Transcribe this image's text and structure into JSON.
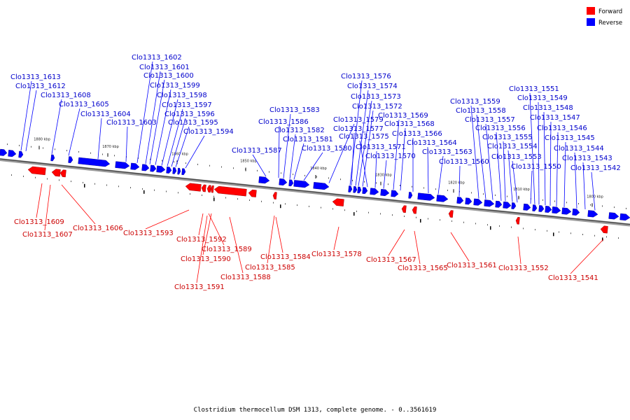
{
  "colors": {
    "forward": "#ff0000",
    "reverse": "#0000ff",
    "forward_label": "#cc0000",
    "reverse_label": "#0000cc"
  },
  "legend": {
    "forward": "Forward",
    "reverse": "Reverse"
  },
  "caption": "Clostridium thermocellum DSM 1313, complete genome. - 0..3561619",
  "ticks": [
    "1880 kbp",
    "1870 kbp",
    "1860 kbp",
    "1850 kbp",
    "1840 kbp",
    "1830 kbp",
    "1820 kbp",
    "1810 kbp",
    "1800 kbp"
  ],
  "reverse_labels": [
    "Clo1313_1613",
    "Clo1313_1612",
    "Clo1313_1608",
    "Clo1313_1605",
    "Clo1313_1604",
    "Clo1313_1603",
    "Clo1313_1602",
    "Clo1313_1601",
    "Clo1313_1600",
    "Clo1313_1599",
    "Clo1313_1598",
    "Clo1313_1597",
    "Clo1313_1596",
    "Clo1313_1595",
    "Clo1313_1594",
    "Clo1313_1587",
    "Clo1313_1586",
    "Clo1313_1583",
    "Clo1313_1582",
    "Clo1313_1581",
    "Clo1313_1580",
    "Clo1313_1579",
    "Clo1313_1576",
    "Clo1313_1574",
    "Clo1313_1573",
    "Clo1313_1572",
    "Clo1313_1577",
    "Clo1313_1575",
    "Clo1313_1571",
    "Clo1313_1570",
    "Clo1313_1569",
    "Clo1313_1568",
    "Clo1313_1566",
    "Clo1313_1564",
    "Clo1313_1563",
    "Clo1313_1560",
    "Clo1313_1559",
    "Clo1313_1558",
    "Clo1313_1557",
    "Clo1313_1556",
    "Clo1313_1555",
    "Clo1313_1554",
    "Clo1313_1553",
    "Clo1313_1550",
    "Clo1313_1551",
    "Clo1313_1549",
    "Clo1313_1548",
    "Clo1313_1547",
    "Clo1313_1546",
    "Clo1313_1545",
    "Clo1313_1544",
    "Clo1313_1543",
    "Clo1313_1542"
  ],
  "forward_labels": [
    "Clo1313_1609",
    "Clo1313_1607",
    "Clo1313_1606",
    "Clo1313_1593",
    "Clo1313_1592",
    "Clo1313_1589",
    "Clo1313_1590",
    "Clo1313_1585",
    "Clo1313_1591",
    "Clo1313_1588",
    "Clo1313_1584",
    "Clo1313_1578",
    "Clo1313_1567",
    "Clo1313_1565",
    "Clo1313_1561",
    "Clo1313_1552",
    "Clo1313_1541"
  ]
}
